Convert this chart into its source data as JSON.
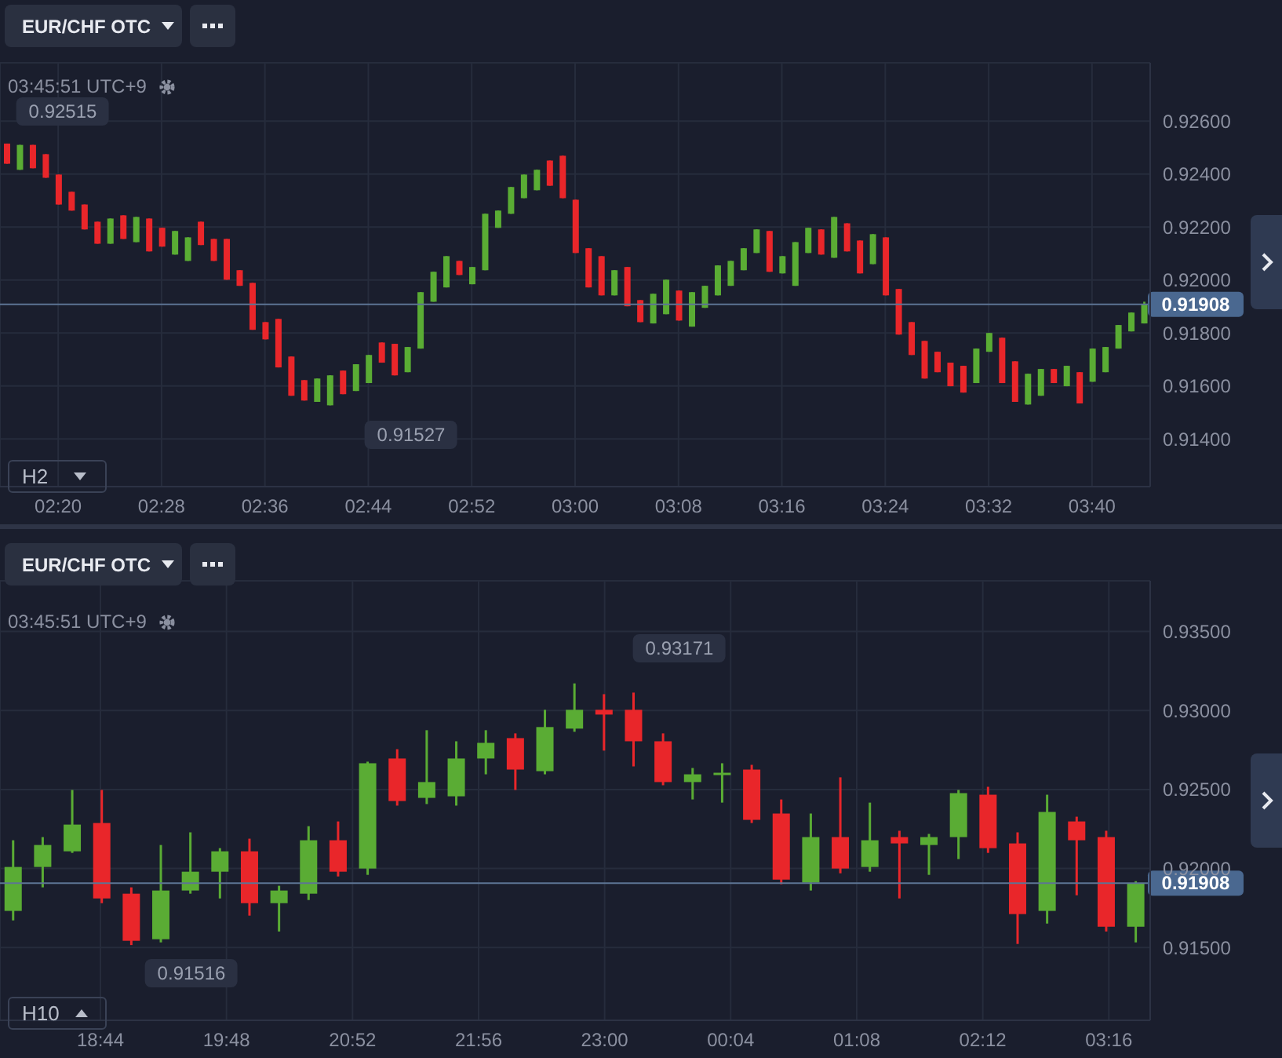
{
  "chart_data": [
    {
      "type": "candlestick",
      "categories": [
        null,
        null,
        null,
        null,
        "02:20",
        null,
        null,
        null,
        null,
        null,
        null,
        null,
        "02:28",
        null,
        null,
        null,
        null,
        null,
        null,
        null,
        "02:36",
        null,
        null,
        null,
        null,
        null,
        null,
        null,
        "02:44",
        null,
        null,
        null,
        null,
        null,
        null,
        null,
        "02:52",
        null,
        null,
        null,
        null,
        null,
        null,
        null,
        "03:00",
        null,
        null,
        null,
        null,
        null,
        null,
        null,
        "03:08",
        null,
        null,
        null,
        null,
        null,
        null,
        null,
        "03:16",
        null,
        null,
        null,
        null,
        null,
        null,
        null,
        "03:24",
        null,
        null,
        null,
        null,
        null,
        null,
        null,
        "03:32",
        null,
        null,
        null,
        null,
        null,
        null,
        null,
        "03:40",
        null,
        null,
        null,
        null
      ],
      "ohlc": [
        [
          0.92515,
          0.92515,
          0.92439,
          0.92439
        ],
        [
          0.92416,
          0.9251,
          0.92416,
          0.9251
        ],
        [
          0.9251,
          0.9251,
          0.92422,
          0.92422
        ],
        [
          0.92475,
          0.92475,
          0.92386,
          0.92386
        ],
        [
          0.92398,
          0.92398,
          0.92285,
          0.92285
        ],
        [
          0.92333,
          0.92333,
          0.92262,
          0.92262
        ],
        [
          0.92285,
          0.92285,
          0.92191,
          0.92191
        ],
        [
          0.9222,
          0.9222,
          0.92137,
          0.92137
        ],
        [
          0.92137,
          0.92232,
          0.92137,
          0.92232
        ],
        [
          0.92244,
          0.92244,
          0.92155,
          0.92155
        ],
        [
          0.92143,
          0.92238,
          0.92143,
          0.92238
        ],
        [
          0.92232,
          0.92232,
          0.92108,
          0.92108
        ],
        [
          0.92197,
          0.92197,
          0.92126,
          0.92126
        ],
        [
          0.92096,
          0.92185,
          0.92096,
          0.92185
        ],
        [
          0.92072,
          0.92161,
          0.92072,
          0.92161
        ],
        [
          0.9222,
          0.9222,
          0.92132,
          0.92132
        ],
        [
          0.92155,
          0.92155,
          0.92072,
          0.92072
        ],
        [
          0.92155,
          0.92155,
          0.92001,
          0.92001
        ],
        [
          0.92037,
          0.92037,
          0.91978,
          0.91978
        ],
        [
          0.91989,
          0.91989,
          0.91812,
          0.91812
        ],
        [
          0.91841,
          0.91841,
          0.91776,
          0.91776
        ],
        [
          0.91853,
          0.91853,
          0.9167,
          0.9167
        ],
        [
          0.91711,
          0.91711,
          0.91563,
          0.91563
        ],
        [
          0.91622,
          0.91622,
          0.91545,
          0.91545
        ],
        [
          0.9154,
          0.91628,
          0.9154,
          0.91628
        ],
        [
          0.91527,
          0.9164,
          0.91527,
          0.9164
        ],
        [
          0.91658,
          0.91658,
          0.91569,
          0.91569
        ],
        [
          0.91581,
          0.91682,
          0.91581,
          0.91682
        ],
        [
          0.91611,
          0.91717,
          0.91611,
          0.91717
        ],
        [
          0.91764,
          0.91764,
          0.91688,
          0.91688
        ],
        [
          0.91759,
          0.91759,
          0.9164,
          0.9164
        ],
        [
          0.91652,
          0.91747,
          0.91652,
          0.91747
        ],
        [
          0.91741,
          0.91954,
          0.91741,
          0.91954
        ],
        [
          0.91918,
          0.92031,
          0.91918,
          0.92031
        ],
        [
          0.91972,
          0.9209,
          0.91972,
          0.9209
        ],
        [
          0.92072,
          0.92072,
          0.92019,
          0.92019
        ],
        [
          0.91984,
          0.92049,
          0.91984,
          0.92049
        ],
        [
          0.92037,
          0.9225,
          0.92037,
          0.9225
        ],
        [
          0.92197,
          0.92262,
          0.92197,
          0.92262
        ],
        [
          0.9225,
          0.92351,
          0.9225,
          0.92351
        ],
        [
          0.92309,
          0.92398,
          0.92309,
          0.92398
        ],
        [
          0.92339,
          0.92416,
          0.92339,
          0.92416
        ],
        [
          0.92451,
          0.92451,
          0.92356,
          0.92356
        ],
        [
          0.92469,
          0.92469,
          0.92309,
          0.92309
        ],
        [
          0.92303,
          0.92303,
          0.92102,
          0.92102
        ],
        [
          0.9212,
          0.9212,
          0.91972,
          0.91972
        ],
        [
          0.9209,
          0.9209,
          0.91942,
          0.91942
        ],
        [
          0.91942,
          0.92037,
          0.91942,
          0.92037
        ],
        [
          0.92049,
          0.92049,
          0.91901,
          0.91901
        ],
        [
          0.91924,
          0.91924,
          0.91841,
          0.91841
        ],
        [
          0.91836,
          0.91948,
          0.91836,
          0.91948
        ],
        [
          0.91871,
          0.92001,
          0.91871,
          0.92001
        ],
        [
          0.9196,
          0.9196,
          0.91847,
          0.91847
        ],
        [
          0.91824,
          0.91954,
          0.91824,
          0.91954
        ],
        [
          0.91895,
          0.91978,
          0.91895,
          0.91978
        ],
        [
          0.91942,
          0.92055,
          0.91942,
          0.92055
        ],
        [
          0.91978,
          0.92072,
          0.91978,
          0.92072
        ],
        [
          0.92037,
          0.9212,
          0.92037,
          0.9212
        ],
        [
          0.92102,
          0.92191,
          0.92102,
          0.92191
        ],
        [
          0.92185,
          0.92185,
          0.92031,
          0.92031
        ],
        [
          0.92025,
          0.9209,
          0.92025,
          0.9209
        ],
        [
          0.91978,
          0.92143,
          0.91978,
          0.92143
        ],
        [
          0.92102,
          0.92197,
          0.92102,
          0.92197
        ],
        [
          0.92191,
          0.92191,
          0.92096,
          0.92096
        ],
        [
          0.92084,
          0.92238,
          0.92084,
          0.92238
        ],
        [
          0.92214,
          0.92214,
          0.92108,
          0.92108
        ],
        [
          0.92149,
          0.92149,
          0.92025,
          0.92025
        ],
        [
          0.9206,
          0.92173,
          0.9206,
          0.92173
        ],
        [
          0.92161,
          0.92161,
          0.91942,
          0.91942
        ],
        [
          0.91966,
          0.91966,
          0.91794,
          0.91794
        ],
        [
          0.91841,
          0.91841,
          0.91717,
          0.91717
        ],
        [
          0.9177,
          0.9177,
          0.91628,
          0.91628
        ],
        [
          0.91729,
          0.91729,
          0.91652,
          0.91652
        ],
        [
          0.91688,
          0.91688,
          0.91599,
          0.91599
        ],
        [
          0.91676,
          0.91676,
          0.91575,
          0.91575
        ],
        [
          0.91611,
          0.91741,
          0.91611,
          0.91741
        ],
        [
          0.91729,
          0.918,
          0.91729,
          0.918
        ],
        [
          0.91782,
          0.91782,
          0.91611,
          0.91611
        ],
        [
          0.91693,
          0.91693,
          0.9154,
          0.9154
        ],
        [
          0.9153,
          0.91646,
          0.9153,
          0.91646
        ],
        [
          0.91563,
          0.91664,
          0.91563,
          0.91664
        ],
        [
          0.91664,
          0.91664,
          0.91611,
          0.91611
        ],
        [
          0.91599,
          0.91676,
          0.91599,
          0.91676
        ],
        [
          0.91652,
          0.91652,
          0.91534,
          0.91534
        ],
        [
          0.91616,
          0.91741,
          0.91616,
          0.91741
        ],
        [
          0.91652,
          0.91747,
          0.91652,
          0.91747
        ],
        [
          0.91741,
          0.9183,
          0.91741,
          0.9183
        ],
        [
          0.91806,
          0.91877,
          0.91806,
          0.91877
        ],
        [
          0.91836,
          0.91918,
          0.91836,
          0.91908
        ]
      ],
      "colors": [
        "#e9262a",
        "#5aac34",
        "#e9262a",
        "#e9262a",
        "#e9262a",
        "#e9262a",
        "#e9262a",
        "#e9262a",
        "#5aac34",
        "#e9262a",
        "#5aac34",
        "#e9262a",
        "#e9262a",
        "#5aac34",
        "#5aac34",
        "#e9262a",
        "#e9262a",
        "#e9262a",
        "#e9262a",
        "#e9262a",
        "#e9262a",
        "#e9262a",
        "#e9262a",
        "#e9262a",
        "#5aac34",
        "#5aac34",
        "#e9262a",
        "#5aac34",
        "#5aac34",
        "#e9262a",
        "#e9262a",
        "#5aac34",
        "#5aac34",
        "#5aac34",
        "#5aac34",
        "#e9262a",
        "#5aac34",
        "#5aac34",
        "#5aac34",
        "#5aac34",
        "#5aac34",
        "#5aac34",
        "#e9262a",
        "#e9262a",
        "#e9262a",
        "#e9262a",
        "#e9262a",
        "#5aac34",
        "#e9262a",
        "#e9262a",
        "#5aac34",
        "#5aac34",
        "#e9262a",
        "#5aac34",
        "#5aac34",
        "#5aac34",
        "#5aac34",
        "#5aac34",
        "#5aac34",
        "#e9262a",
        "#5aac34",
        "#5aac34",
        "#5aac34",
        "#e9262a",
        "#5aac34",
        "#e9262a",
        "#e9262a",
        "#5aac34",
        "#e9262a",
        "#e9262a",
        "#e9262a",
        "#e9262a",
        "#e9262a",
        "#e9262a",
        "#e9262a",
        "#5aac34",
        "#5aac34",
        "#e9262a",
        "#e9262a",
        "#5aac34",
        "#5aac34",
        "#e9262a",
        "#5aac34",
        "#e9262a",
        "#5aac34",
        "#5aac34",
        "#5aac34",
        "#5aac34",
        "#5aac34"
      ],
      "ylim": [
        0.9122,
        0.9282
      ],
      "yticks": [
        {
          "value": 0.914,
          "label": "0.91400"
        },
        {
          "value": 0.916,
          "label": "0.91600"
        },
        {
          "value": 0.918,
          "label": "0.91800"
        },
        {
          "value": 0.92,
          "label": "0.92000"
        },
        {
          "value": 0.922,
          "label": "0.92200"
        },
        {
          "value": 0.924,
          "label": "0.92400"
        },
        {
          "value": 0.926,
          "label": "0.92600"
        }
      ],
      "grid": true,
      "ref_lines": [
        {
          "axis": "y",
          "value": 0.91908,
          "label": "0.91908",
          "color": "#5d7494"
        }
      ],
      "annotations": [
        "EUR/CHF OTC",
        "03:45:51 UTC+9",
        "H2",
        "0.92515",
        "0.91527"
      ]
    },
    {
      "type": "candlestick",
      "x": [
        "2000-01-01T18:00",
        "2000-01-01T18:15",
        "2000-01-01T18:30",
        "2000-01-01T18:45",
        "2000-01-01T19:00",
        "2000-01-01T19:15",
        "2000-01-01T19:30",
        "2000-01-01T19:45",
        "2000-01-01T20:00",
        "2000-01-01T20:15",
        "2000-01-01T20:30",
        "2000-01-01T20:45",
        "2000-01-01T21:00",
        "2000-01-01T21:15",
        "2000-01-01T21:30",
        "2000-01-01T21:45",
        "2000-01-01T22:00",
        "2000-01-01T22:15",
        "2000-01-01T22:30",
        "2000-01-01T22:45",
        "2000-01-01T23:00",
        "2000-01-01T23:15",
        "2000-01-01T23:30",
        "2000-01-01T23:45",
        "2000-01-02T00:00",
        "2000-01-02T00:15",
        "2000-01-02T00:30",
        "2000-01-02T00:45",
        "2000-01-02T01:00",
        "2000-01-02T01:15",
        "2000-01-02T01:30",
        "2000-01-02T01:45",
        "2000-01-02T02:00",
        "2000-01-02T02:15",
        "2000-01-02T02:30",
        "2000-01-02T02:45",
        "2000-01-02T03:00",
        "2000-01-02T03:15",
        "2000-01-02T03:30"
      ],
      "ohlc": [
        [
          0.91732,
          0.92179,
          0.91672,
          0.9201
        ],
        [
          0.9201,
          0.92199,
          0.91881,
          0.92149
        ],
        [
          0.92109,
          0.92497,
          0.92099,
          0.92278
        ],
        [
          0.92288,
          0.92497,
          0.91781,
          0.91811
        ],
        [
          0.91841,
          0.91881,
          0.91516,
          0.91543
        ],
        [
          0.91553,
          0.92149,
          0.91533,
          0.91861
        ],
        [
          0.91861,
          0.92229,
          0.91841,
          0.9198
        ],
        [
          0.9198,
          0.92129,
          0.91811,
          0.92109
        ],
        [
          0.92109,
          0.92189,
          0.91702,
          0.91781
        ],
        [
          0.91781,
          0.91891,
          0.91602,
          0.91861
        ],
        [
          0.91841,
          0.92268,
          0.91801,
          0.92179
        ],
        [
          0.92179,
          0.92298,
          0.9195,
          0.9198
        ],
        [
          0.92,
          0.92676,
          0.9196,
          0.92666
        ],
        [
          0.92696,
          0.92755,
          0.92398,
          0.92427
        ],
        [
          0.92447,
          0.92875,
          0.92408,
          0.92547
        ],
        [
          0.92457,
          0.92805,
          0.92398,
          0.92696
        ],
        [
          0.92696,
          0.92875,
          0.92596,
          0.92795
        ],
        [
          0.92825,
          0.92855,
          0.92497,
          0.92626
        ],
        [
          0.92616,
          0.93004,
          0.92596,
          0.92895
        ],
        [
          0.92885,
          0.93171,
          0.92865,
          0.93004
        ],
        [
          0.93004,
          0.93103,
          0.92746,
          0.92974
        ],
        [
          0.93004,
          0.93113,
          0.92646,
          0.92805
        ],
        [
          0.92805,
          0.92855,
          0.92527,
          0.92547
        ],
        [
          0.92547,
          0.92636,
          0.92437,
          0.92596
        ],
        [
          0.92596,
          0.92666,
          0.92417,
          0.92606
        ],
        [
          0.92626,
          0.92656,
          0.92288,
          0.92308
        ],
        [
          0.92348,
          0.92437,
          0.91901,
          0.9193
        ],
        [
          0.91911,
          0.92348,
          0.91861,
          0.92199
        ],
        [
          0.92199,
          0.92577,
          0.9197,
          0.92
        ],
        [
          0.9201,
          0.92417,
          0.9198,
          0.92179
        ],
        [
          0.92199,
          0.92239,
          0.91811,
          0.92159
        ],
        [
          0.92149,
          0.92219,
          0.9196,
          0.92199
        ],
        [
          0.92199,
          0.92497,
          0.9206,
          0.92477
        ],
        [
          0.92467,
          0.92517,
          0.92099,
          0.92129
        ],
        [
          0.92159,
          0.92229,
          0.91523,
          0.91712
        ],
        [
          0.91732,
          0.92467,
          0.91652,
          0.92358
        ],
        [
          0.92298,
          0.92328,
          0.91831,
          0.92179
        ],
        [
          0.92199,
          0.92239,
          0.91602,
          0.91632
        ],
        [
          0.91632,
          0.9192,
          0.91533,
          0.91908
        ]
      ],
      "colors": [
        "#5aac34",
        "#5aac34",
        "#5aac34",
        "#e9262a",
        "#e9262a",
        "#5aac34",
        "#5aac34",
        "#5aac34",
        "#e9262a",
        "#5aac34",
        "#5aac34",
        "#e9262a",
        "#5aac34",
        "#e9262a",
        "#5aac34",
        "#5aac34",
        "#5aac34",
        "#e9262a",
        "#5aac34",
        "#5aac34",
        "#e9262a",
        "#e9262a",
        "#e9262a",
        "#5aac34",
        "#5aac34",
        "#e9262a",
        "#e9262a",
        "#5aac34",
        "#e9262a",
        "#5aac34",
        "#e9262a",
        "#5aac34",
        "#5aac34",
        "#e9262a",
        "#e9262a",
        "#5aac34",
        "#e9262a",
        "#e9262a",
        "#5aac34"
      ],
      "xlim": [
        "2000-01-01T17:53",
        "2000-01-02T03:37"
      ],
      "xticks": [
        {
          "value": "2000-01-01T18:44",
          "label": "18:44"
        },
        {
          "value": "2000-01-01T19:48",
          "label": "19:48"
        },
        {
          "value": "2000-01-01T20:52",
          "label": "20:52"
        },
        {
          "value": "2000-01-01T21:56",
          "label": "21:56"
        },
        {
          "value": "2000-01-01T23:00",
          "label": "23:00"
        },
        {
          "value": "2000-01-02T00:04",
          "label": "00:04"
        },
        {
          "value": "2000-01-02T01:08",
          "label": "01:08"
        },
        {
          "value": "2000-01-02T02:12",
          "label": "02:12"
        },
        {
          "value": "2000-01-02T03:16",
          "label": "03:16"
        }
      ],
      "ylim": [
        0.9104,
        0.9382
      ],
      "yticks": [
        {
          "value": 0.915,
          "label": "0.91500"
        },
        {
          "value": 0.92,
          "label": "0.92000"
        },
        {
          "value": 0.925,
          "label": "0.92500"
        },
        {
          "value": 0.93,
          "label": "0.93000"
        },
        {
          "value": 0.935,
          "label": "0.93500"
        }
      ],
      "grid": true,
      "ref_lines": [
        {
          "axis": "y",
          "value": 0.91908,
          "label": "0.91908",
          "color": "#5d7494"
        }
      ],
      "annotations": [
        "EUR/CHF OTC",
        "03:45:51 UTC+9",
        "H10",
        "0.93171",
        "0.91516"
      ]
    }
  ]
}
